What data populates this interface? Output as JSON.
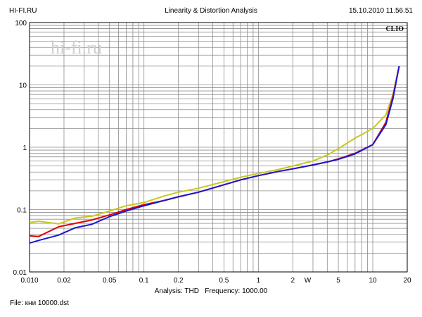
{
  "header": {
    "left": "HI-FI.RU",
    "center": "Linearity & Distortion Analysis",
    "right": "15.10.2010 11.56.51"
  },
  "brand": "CLIO",
  "watermark": "hi-fi.ru",
  "footer": {
    "analysis_label": "Analysis: THD",
    "frequency_label": "Frequency: 1000.00",
    "file": "File: кни 10000.dst"
  },
  "colors": {
    "series_red": "#dd0000",
    "series_blue": "#1a1ad0",
    "series_yellow": "#c8c81e",
    "grid": "#8c8c8c"
  },
  "chart_data": {
    "type": "line",
    "title": "Linearity & Distortion Analysis",
    "x_scale": "log",
    "y_scale": "log",
    "xlim": [
      0.01,
      20
    ],
    "ylim": [
      0.01,
      100
    ],
    "grid": true,
    "x_ticks": [
      {
        "value": 0.01,
        "label": "0.010"
      },
      {
        "value": 0.02,
        "label": "0.02"
      },
      {
        "value": 0.05,
        "label": "0.05"
      },
      {
        "value": 0.1,
        "label": "0.1"
      },
      {
        "value": 0.2,
        "label": "0.2"
      },
      {
        "value": 0.5,
        "label": "0.5"
      },
      {
        "value": 1,
        "label": "1"
      },
      {
        "value": 2,
        "label": "2"
      },
      {
        "value": 5,
        "label": "5"
      },
      {
        "value": 10,
        "label": "10"
      },
      {
        "value": 20,
        "label": "20"
      }
    ],
    "x_unit": {
      "value": 2.7,
      "label": "W"
    },
    "y_ticks": [
      {
        "value": 0.01,
        "label": "0.01"
      },
      {
        "value": 0.1,
        "label": "0.1"
      },
      {
        "value": 1,
        "label": "1"
      },
      {
        "value": 10,
        "label": "10"
      },
      {
        "value": 100,
        "label": "100"
      }
    ],
    "series": [
      {
        "color": "#c8c81e",
        "x": [
          0.01,
          0.012,
          0.018,
          0.025,
          0.035,
          0.05,
          0.07,
          0.1,
          0.15,
          0.2,
          0.3,
          0.5,
          0.7,
          1,
          1.5,
          2,
          3,
          4,
          5,
          7,
          10,
          13,
          15,
          17
        ],
        "y": [
          0.062,
          0.065,
          0.059,
          0.073,
          0.078,
          0.095,
          0.115,
          0.13,
          0.165,
          0.19,
          0.22,
          0.28,
          0.33,
          0.38,
          0.44,
          0.5,
          0.6,
          0.75,
          0.95,
          1.4,
          2.0,
          3.3,
          7,
          20
        ]
      },
      {
        "color": "#dd0000",
        "x": [
          0.01,
          0.012,
          0.018,
          0.025,
          0.035,
          0.05,
          0.07,
          0.1,
          0.15,
          0.2,
          0.3,
          0.5,
          0.7,
          1,
          1.5,
          2,
          3,
          4,
          5,
          7,
          10,
          13,
          15,
          17
        ],
        "y": [
          0.038,
          0.037,
          0.053,
          0.06,
          0.068,
          0.082,
          0.1,
          0.12,
          0.14,
          0.16,
          0.19,
          0.25,
          0.3,
          0.35,
          0.41,
          0.45,
          0.52,
          0.58,
          0.65,
          0.8,
          1.1,
          2.5,
          6.5,
          20
        ]
      },
      {
        "color": "#1a1ad0",
        "x": [
          0.01,
          0.012,
          0.018,
          0.025,
          0.035,
          0.05,
          0.07,
          0.1,
          0.15,
          0.2,
          0.3,
          0.5,
          0.7,
          1,
          1.5,
          2,
          3,
          4,
          5,
          7,
          10,
          13,
          15,
          17
        ],
        "y": [
          0.029,
          0.032,
          0.039,
          0.051,
          0.058,
          0.077,
          0.095,
          0.115,
          0.14,
          0.16,
          0.19,
          0.25,
          0.3,
          0.35,
          0.41,
          0.45,
          0.52,
          0.58,
          0.64,
          0.78,
          1.1,
          2.3,
          6,
          20
        ]
      }
    ]
  }
}
